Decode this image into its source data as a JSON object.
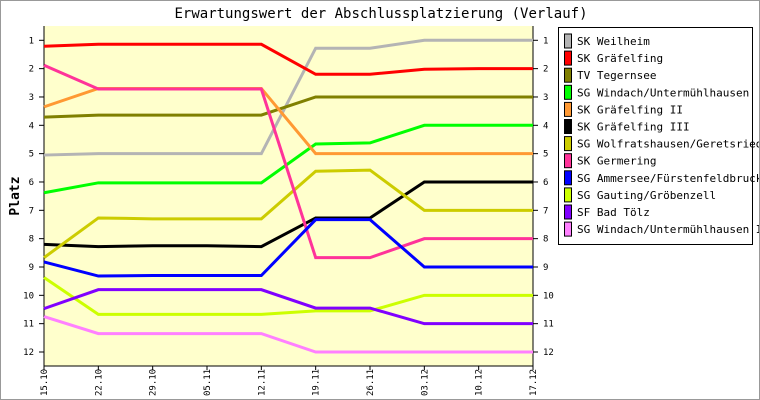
{
  "chart_data": {
    "type": "line",
    "title": "Erwartungswert der Abschlussplatzierung (Verlauf)",
    "ylabel": "Platz",
    "xlabel": "",
    "x": [
      "15.10",
      "22.10",
      "29.10",
      "05.11",
      "12.11",
      "19.11",
      "26.11",
      "03.12",
      "10.12",
      "17.12"
    ],
    "y_ticks": [
      "1",
      "2",
      "3",
      "4",
      "5",
      "6",
      "7",
      "8",
      "9",
      "10",
      "11",
      "12"
    ],
    "ylim": [
      12.5,
      0.5
    ],
    "y_inverted": true,
    "grid": false,
    "legend_position": "right",
    "plot_background": "#ffffcc",
    "series": [
      {
        "name": "SK Weilheim",
        "color": "#b4b4b4",
        "values": [
          5.05,
          5.0,
          5.0,
          5.0,
          5.0,
          1.28,
          1.28,
          1.0,
          1.0,
          1.0
        ]
      },
      {
        "name": "SK Gräfelfing",
        "color": "#ff0000",
        "values": [
          1.21,
          1.14,
          1.14,
          1.14,
          1.14,
          2.2,
          2.2,
          2.02,
          2.0,
          2.0
        ]
      },
      {
        "name": "TV Tegernsee",
        "color": "#808000",
        "values": [
          3.71,
          3.64,
          3.64,
          3.64,
          3.64,
          3.0,
          3.0,
          3.0,
          3.0,
          3.0
        ]
      },
      {
        "name": "SG Windach/Untermühlhausen",
        "color": "#00ff00",
        "values": [
          6.38,
          6.03,
          6.03,
          6.03,
          6.03,
          4.66,
          4.62,
          4.0,
          4.0,
          4.0
        ]
      },
      {
        "name": "SK Gräfelfing II",
        "color": "#ff9933",
        "values": [
          3.35,
          2.7,
          2.7,
          2.7,
          2.7,
          5.0,
          5.0,
          5.0,
          5.0,
          5.0
        ]
      },
      {
        "name": "SK Gräfelfing III",
        "color": "#000000",
        "values": [
          8.2,
          8.28,
          8.25,
          8.25,
          8.28,
          7.27,
          7.27,
          6.0,
          6.0,
          6.0
        ]
      },
      {
        "name": "SG Wolfratshausen/Geretsried",
        "color": "#cccc00",
        "values": [
          8.67,
          7.27,
          7.3,
          7.3,
          7.3,
          5.62,
          5.58,
          7.0,
          7.0,
          7.0
        ]
      },
      {
        "name": "SK Germering",
        "color": "#ff3399",
        "values": [
          1.88,
          2.72,
          2.72,
          2.72,
          2.72,
          8.67,
          8.67,
          8.0,
          8.0,
          8.0
        ]
      },
      {
        "name": "SG Ammersee/Fürstenfeldbruck",
        "color": "#0000ff",
        "values": [
          8.82,
          9.32,
          9.3,
          9.3,
          9.3,
          7.33,
          7.33,
          9.0,
          9.0,
          9.0
        ]
      },
      {
        "name": "SG Gauting/Gröbenzell",
        "color": "#ccff00",
        "values": [
          9.37,
          10.67,
          10.67,
          10.67,
          10.67,
          10.55,
          10.55,
          10.0,
          10.0,
          10.0
        ]
      },
      {
        "name": "SF Bad Tölz",
        "color": "#8000ff",
        "values": [
          10.47,
          9.8,
          9.8,
          9.8,
          9.8,
          10.45,
          10.45,
          11.0,
          11.0,
          11.0
        ]
      },
      {
        "name": "SG Windach/Untermühlhausen II",
        "color": "#ff80ff",
        "values": [
          10.75,
          11.35,
          11.35,
          11.35,
          11.35,
          12.0,
          12.0,
          12.0,
          12.0,
          12.0
        ]
      }
    ]
  }
}
